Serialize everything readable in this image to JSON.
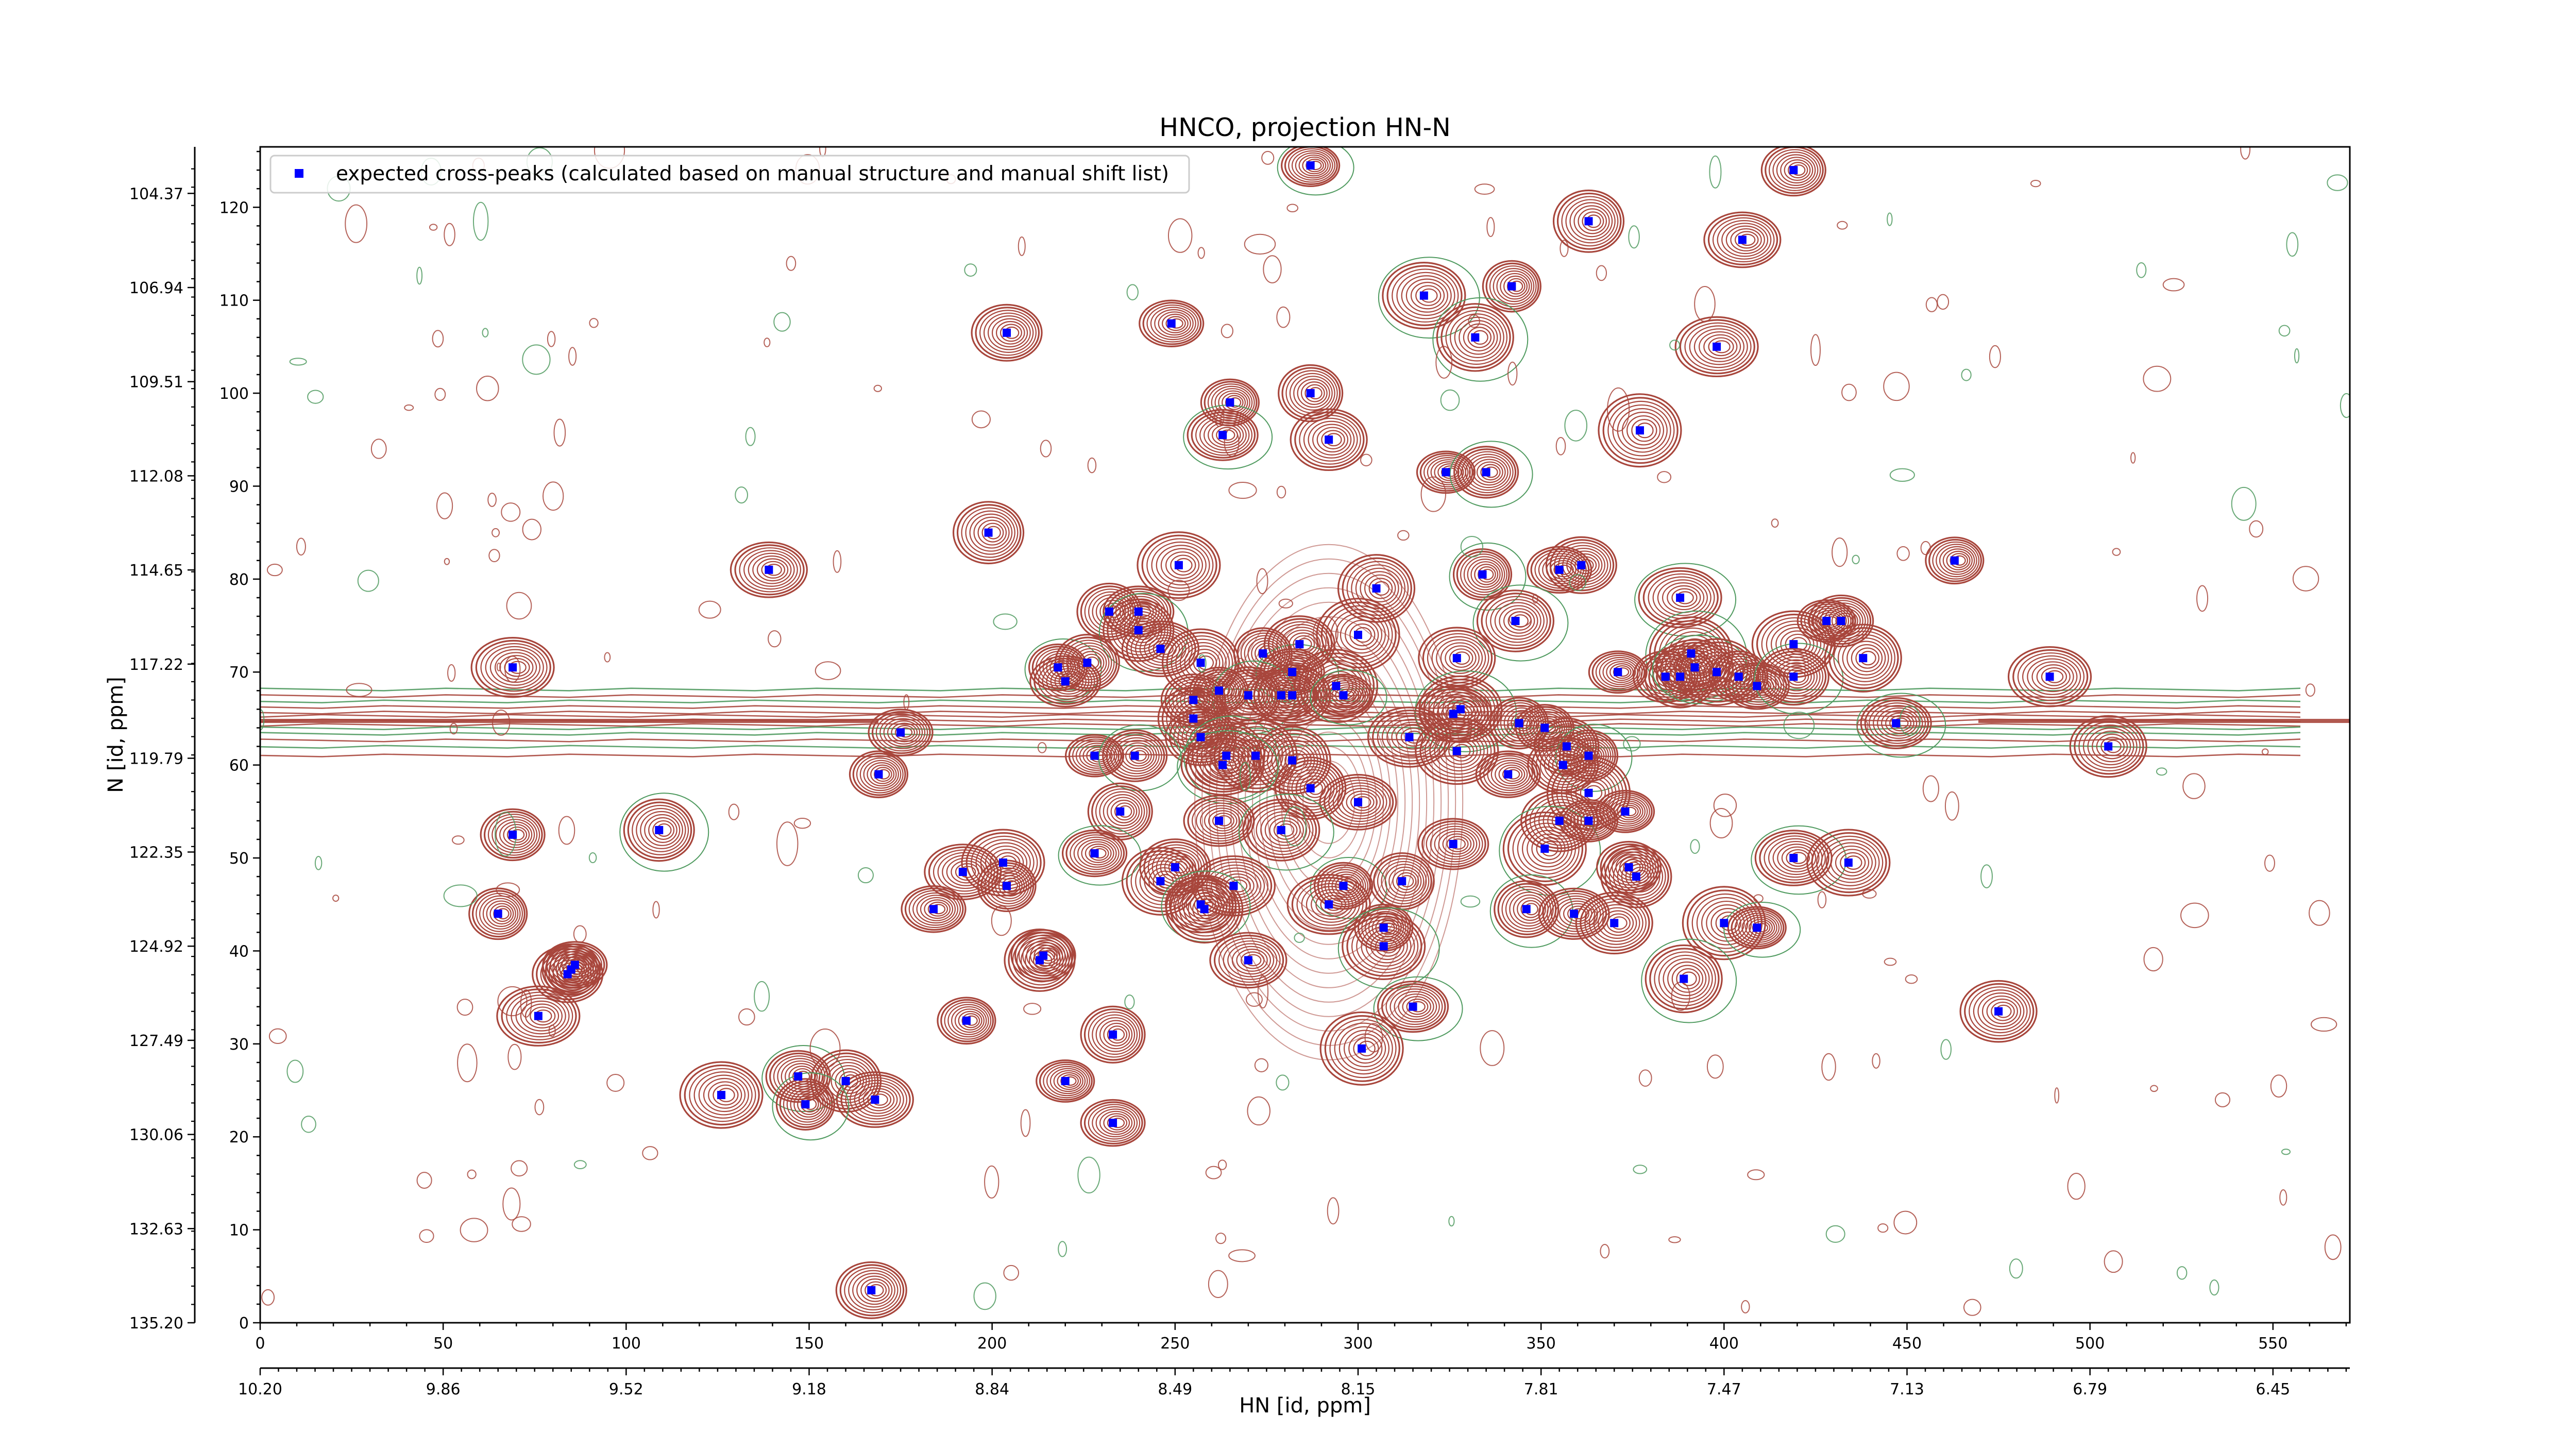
{
  "chart_data": {
    "type": "contour",
    "title": "HNCO, projection HN-N",
    "xlabel": "HN [id, ppm]",
    "ylabel": "N [id, ppm]",
    "x_index": {
      "ticks": [
        0,
        50,
        100,
        150,
        200,
        250,
        300,
        350,
        400,
        450,
        500,
        550
      ],
      "range": [
        0,
        571
      ]
    },
    "y_index": {
      "ticks": [
        0,
        10,
        20,
        30,
        40,
        50,
        60,
        70,
        80,
        90,
        100,
        110,
        120
      ],
      "range": [
        0,
        126.5
      ]
    },
    "x_ppm_ticks": [
      "10.20",
      "9.86",
      "9.52",
      "9.18",
      "8.84",
      "8.49",
      "8.15",
      "7.81",
      "7.47",
      "7.13",
      "6.79",
      "6.45"
    ],
    "y_ppm_ticks": [
      "135.20",
      "132.63",
      "130.06",
      "127.49",
      "124.92",
      "122.35",
      "119.79",
      "117.22",
      "114.65",
      "112.08",
      "109.51",
      "106.94",
      "104.37"
    ],
    "legend": {
      "label": "expected cross-peaks (calculated based on manual structure and manual shift list)",
      "placement": "upper left"
    },
    "colors": {
      "positive_contours": "#a8463c",
      "negative_contours": "#4f9a5f",
      "markers": "#0000ff"
    },
    "series": [
      {
        "name": "expected cross-peaks (calculated based on manual structure and manual shift list)",
        "marker": "square",
        "points": [
          [
            287,
            124.5
          ],
          [
            419,
            124
          ],
          [
            363,
            118.5
          ],
          [
            405,
            116.5
          ],
          [
            318,
            110.5
          ],
          [
            342,
            111.5
          ],
          [
            249,
            107.5
          ],
          [
            204,
            106.5
          ],
          [
            332,
            106
          ],
          [
            398,
            105
          ],
          [
            265,
            99
          ],
          [
            287,
            100
          ],
          [
            263,
            95.5
          ],
          [
            292,
            95
          ],
          [
            377,
            96
          ],
          [
            324,
            91.5
          ],
          [
            335,
            91.5
          ],
          [
            199,
            85
          ],
          [
            139,
            81
          ],
          [
            251,
            81.5
          ],
          [
            334,
            80.5
          ],
          [
            355,
            81
          ],
          [
            361,
            81.5
          ],
          [
            305,
            79
          ],
          [
            388,
            78
          ],
          [
            463,
            82
          ],
          [
            232,
            76.5
          ],
          [
            240,
            76.5
          ],
          [
            343,
            75.5
          ],
          [
            300,
            74
          ],
          [
            428,
            75.5
          ],
          [
            432,
            75.5
          ],
          [
            240,
            74.5
          ],
          [
            246,
            72.5
          ],
          [
            419,
            73
          ],
          [
            274,
            72
          ],
          [
            282,
            70
          ],
          [
            284,
            73
          ],
          [
            257,
            71
          ],
          [
            69,
            70.5
          ],
          [
            218,
            70.5
          ],
          [
            226,
            71
          ],
          [
            220,
            69
          ],
          [
            327,
            71.5
          ],
          [
            391,
            72
          ],
          [
            371,
            70
          ],
          [
            384,
            69.5
          ],
          [
            388,
            69.5
          ],
          [
            392,
            70.5
          ],
          [
            398,
            70
          ],
          [
            404,
            69.5
          ],
          [
            409,
            68.5
          ],
          [
            419,
            69.5
          ],
          [
            438,
            71.5
          ],
          [
            489,
            69.5
          ],
          [
            262,
            68
          ],
          [
            270,
            67.5
          ],
          [
            279,
            67.5
          ],
          [
            282,
            67.5
          ],
          [
            294,
            68.5
          ],
          [
            296,
            67.5
          ],
          [
            255,
            67
          ],
          [
            255,
            65
          ],
          [
            326,
            65.5
          ],
          [
            328,
            66
          ],
          [
            344,
            64.5
          ],
          [
            175,
            63.5
          ],
          [
            257,
            63
          ],
          [
            264,
            61
          ],
          [
            314,
            63
          ],
          [
            351,
            64
          ],
          [
            357,
            62
          ],
          [
            447,
            64.5
          ],
          [
            505,
            62
          ],
          [
            272,
            61
          ],
          [
            228,
            61
          ],
          [
            239,
            61
          ],
          [
            287,
            57.5
          ],
          [
            300,
            56
          ],
          [
            327,
            61.5
          ],
          [
            363,
            61
          ],
          [
            341,
            59
          ],
          [
            356,
            60
          ],
          [
            282,
            60.5
          ],
          [
            263,
            60
          ],
          [
            169,
            59
          ],
          [
            235,
            55
          ],
          [
            262,
            54
          ],
          [
            279,
            53
          ],
          [
            363,
            57
          ],
          [
            373,
            55
          ],
          [
            69,
            52.5
          ],
          [
            109,
            53
          ],
          [
            192,
            48.5
          ],
          [
            203,
            49.5
          ],
          [
            204,
            47
          ],
          [
            228,
            50.5
          ],
          [
            250,
            49
          ],
          [
            246,
            47.5
          ],
          [
            266,
            47
          ],
          [
            296,
            47
          ],
          [
            312,
            47.5
          ],
          [
            326,
            51.5
          ],
          [
            355,
            54
          ],
          [
            351,
            51
          ],
          [
            363,
            54
          ],
          [
            374,
            49
          ],
          [
            376,
            48
          ],
          [
            419,
            50
          ],
          [
            434,
            49.5
          ],
          [
            65,
            44
          ],
          [
            184,
            44.5
          ],
          [
            257,
            45
          ],
          [
            258,
            44.5
          ],
          [
            292,
            45
          ],
          [
            307,
            42.5
          ],
          [
            346,
            44.5
          ],
          [
            359,
            44
          ],
          [
            370,
            43
          ],
          [
            400,
            43
          ],
          [
            409,
            42.5
          ],
          [
            214,
            39.5
          ],
          [
            213,
            39
          ],
          [
            270,
            39
          ],
          [
            307,
            40.5
          ],
          [
            85,
            38
          ],
          [
            86,
            38.5
          ],
          [
            84,
            37.5
          ],
          [
            389,
            37
          ],
          [
            76,
            33
          ],
          [
            193,
            32.5
          ],
          [
            233,
            31
          ],
          [
            315,
            34
          ],
          [
            475,
            33.5
          ],
          [
            301,
            29.5
          ],
          [
            220,
            26
          ],
          [
            147,
            26.5
          ],
          [
            160,
            26
          ],
          [
            168,
            24
          ],
          [
            126,
            24.5
          ],
          [
            149,
            23.5
          ],
          [
            233,
            21.5
          ],
          [
            167,
            3.5
          ]
        ]
      }
    ]
  }
}
